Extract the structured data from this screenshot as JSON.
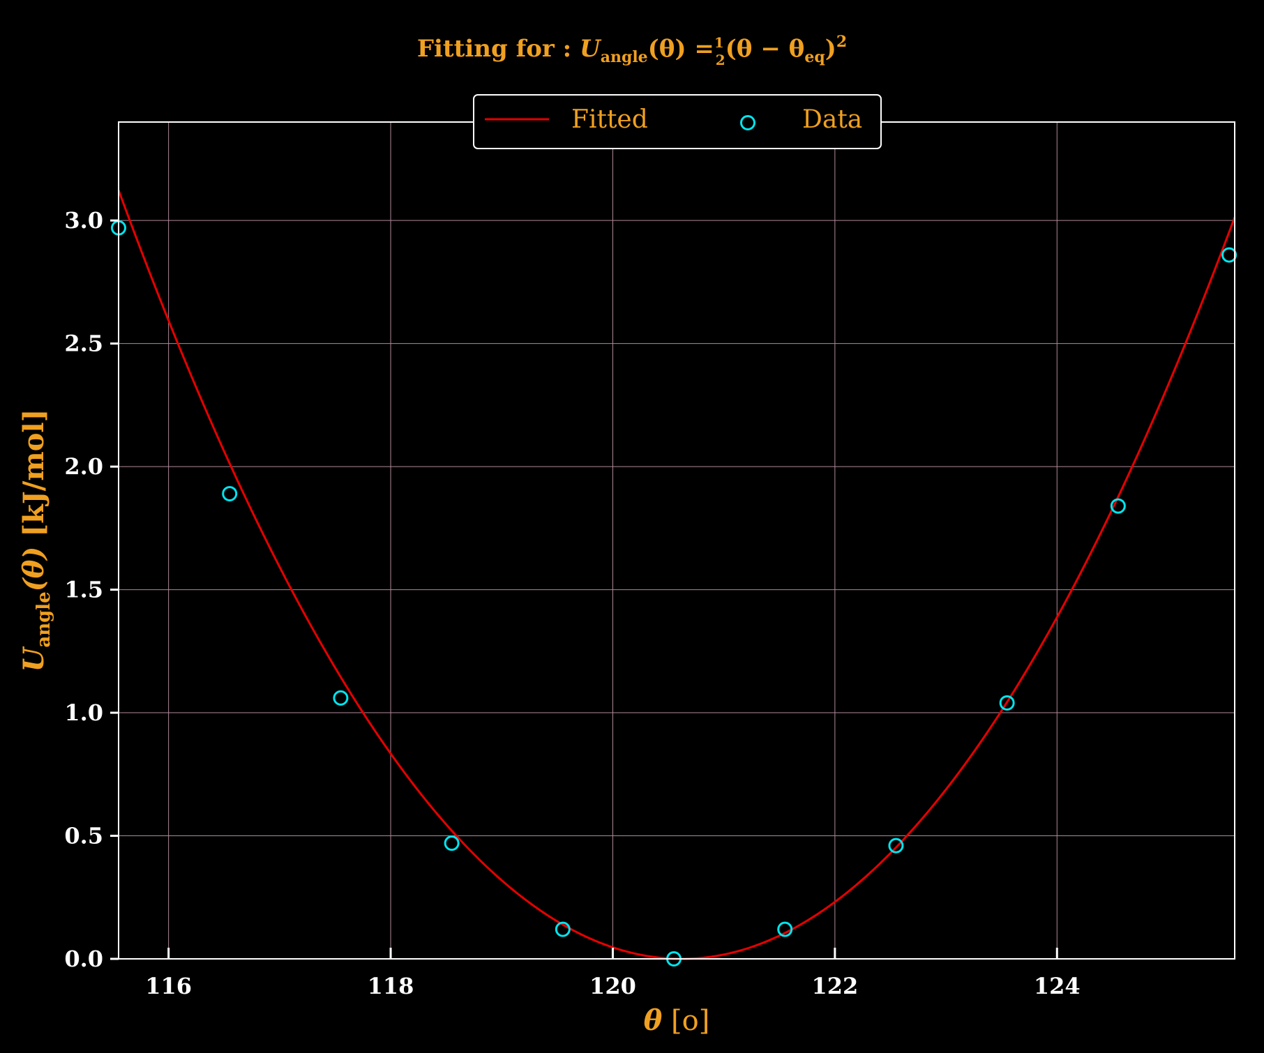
{
  "chart_data": {
    "type": "scatter",
    "title": {
      "prefix": "Fitting for : ",
      "u": "U",
      "u_sub": "angle",
      "lhs_arg": "(θ) =",
      "half_num": "1",
      "half_den": "2",
      "rhs": "(θ − θ",
      "eq_sub": "eq",
      "close": ")",
      "power": "2"
    },
    "xlabel": {
      "theta": "θ",
      "unit": "[o]"
    },
    "ylabel": {
      "u": "U",
      "u_sub": "angle",
      "arg": "(θ)",
      "unit": "[kJ/mol]"
    },
    "xlim": [
      115.55,
      125.6
    ],
    "ylim": [
      0,
      3.4
    ],
    "xticks": [
      116,
      118,
      120,
      122,
      124
    ],
    "xtick_labels": [
      "116",
      "118",
      "120",
      "122",
      "124"
    ],
    "yticks": [
      0.0,
      0.5,
      1.0,
      1.5,
      2.0,
      2.5,
      3.0
    ],
    "ytick_labels": [
      "0.0",
      "0.5",
      "1.0",
      "1.5",
      "2.0",
      "2.5",
      "3.0"
    ],
    "grid": true,
    "legend": {
      "position": "top-center",
      "fitted_label": "Fitted",
      "data_label": "Data"
    },
    "series": [
      {
        "name": "Fitted",
        "kind": "line",
        "color": "#e60000",
        "model": {
          "k": 0.1215,
          "theta_eq": 120.62
        }
      },
      {
        "name": "Data",
        "kind": "scatter",
        "color": "#00e5ee",
        "x": [
          115.55,
          116.55,
          117.55,
          118.55,
          119.55,
          120.55,
          121.55,
          122.55,
          123.55,
          124.55,
          125.55
        ],
        "y": [
          2.97,
          1.89,
          1.06,
          0.47,
          0.12,
          0.0,
          0.12,
          0.46,
          1.04,
          1.84,
          2.86
        ]
      }
    ],
    "colors": {
      "background": "#000000",
      "axes": "#ffffff",
      "grid": "#b08a9a",
      "label": "#f0a020",
      "tick_label": "#ffffff"
    }
  }
}
